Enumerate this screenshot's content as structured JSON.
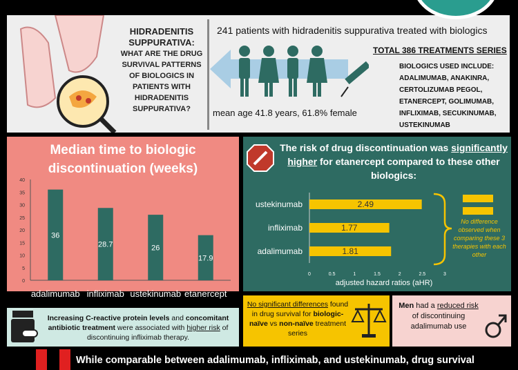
{
  "header": {
    "question_title": "HIDRADENITIS SUPPURATIVA:",
    "question_body": "WHAT ARE THE DRUG SURVIVAL PATTERNS OF BIOLOGICS IN PATIENTS WITH HIDRADENITIS SUPPURATIVA?",
    "patients": "241 patients with hidradenitis suppurativa treated with biologics",
    "total": "TOTAL 386 TREATMENTS SERIES",
    "biologics_used": "BIOLOGICS USED INCLUDE: ADALIMUMAB, ANAKINRA, CERTOLIZUMAB PEGOL, ETANERCEPT, GOLIMUMAB, INFLIXIMAB, SECUKINUMAB, USTEKINUMAB",
    "demographics": "mean age 41.8 years, 61.8% female"
  },
  "left_title": "Median time to biologic discontinuation (weeks)",
  "right_title_pre": "The risk of drug discontinuation was ",
  "right_title_em": "significantly higher",
  "right_title_post": " for etanercept compared to these other biologics:",
  "no_diff_note": "No difference observed when comparing these 3 therapies with each other",
  "crp": {
    "b1": "Increasing C-reactive protein levels",
    "t1": " and ",
    "b2": "concomitant antibiotic treatment",
    "t2": " were associated with ",
    "u1": "higher risk",
    "t3": " of discontinuing infliximab therapy."
  },
  "naive": {
    "u1": "No significant differences",
    "t1": " found in drug survival for ",
    "b1": "biologic-naïve",
    "t2": " vs ",
    "b2": "non-naïve",
    "t3": " treatment series"
  },
  "men": {
    "b1": "Men",
    "t1": " had a ",
    "u1": "reduced risk",
    "t2": " of discontinuing adalimumab use"
  },
  "bottom": "While comparable between adalimumab, infliximab, and ustekinumab, drug survival",
  "colors": {
    "teal_dark": "#2e6b62",
    "salmon": "#f08a82",
    "yellow": "#f6c400"
  },
  "chart_data": [
    {
      "type": "bar",
      "categories": [
        "adalimumab",
        "infliximab",
        "ustekinumab",
        "etanercept"
      ],
      "values": [
        36,
        28.7,
        26,
        17.9
      ],
      "ylim": [
        0,
        40
      ],
      "yticks": [
        0,
        5,
        10,
        15,
        20,
        25,
        30,
        35,
        40
      ],
      "bar_color": "#2e6b62"
    },
    {
      "type": "bar",
      "orientation": "horizontal",
      "categories": [
        "ustekinumab",
        "infliximab",
        "adalimumab"
      ],
      "values": [
        2.49,
        1.77,
        1.81
      ],
      "xlim": [
        0,
        3
      ],
      "xticks": [
        0,
        0.5,
        1,
        1.5,
        2,
        2.5,
        3
      ],
      "xlabel": "adjusted hazard ratios (aHR)",
      "bar_color": "#f6c400"
    }
  ]
}
